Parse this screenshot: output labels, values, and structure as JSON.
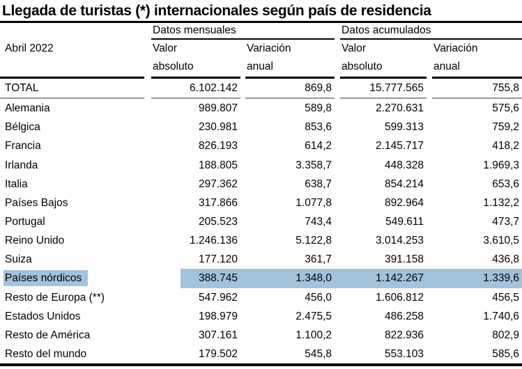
{
  "title": "Llegada de turistas (*) internacionales según país de residencia",
  "table": {
    "period_label": "Abril 2022",
    "group_headers": {
      "monthly": "Datos mensuales",
      "cumulative": "Datos acumulados"
    },
    "sub_headers": {
      "monthly_value": "Valor\nabsoluto",
      "monthly_variation": "Variación\nanual",
      "cumulative_value": "Valor\nabsoluto",
      "cumulative_variation": "Variación\nanual"
    },
    "highlight_color": "#a2c3de",
    "total_row": {
      "country": "TOTAL",
      "monthly_value": "6.102.142",
      "monthly_variation": "869,8",
      "cumulative_value": "15.777.565",
      "cumulative_variation": "755,8"
    },
    "rows": [
      {
        "country": "Alemania",
        "monthly_value": "989.807",
        "monthly_variation": "589,8",
        "cumulative_value": "2.270.631",
        "cumulative_variation": "575,6"
      },
      {
        "country": "Bélgica",
        "monthly_value": "230.981",
        "monthly_variation": "853,6",
        "cumulative_value": "599.313",
        "cumulative_variation": "759,2"
      },
      {
        "country": "Francia",
        "monthly_value": "826.193",
        "monthly_variation": "614,2",
        "cumulative_value": "2.145.717",
        "cumulative_variation": "418,2"
      },
      {
        "country": "Irlanda",
        "monthly_value": "188.805",
        "monthly_variation": "3.358,7",
        "cumulative_value": "448.328",
        "cumulative_variation": "1.969,3"
      },
      {
        "country": "Italia",
        "monthly_value": "297.362",
        "monthly_variation": "638,7",
        "cumulative_value": "854.214",
        "cumulative_variation": "653,6"
      },
      {
        "country": "Países Bajos",
        "monthly_value": "317.866",
        "monthly_variation": "1.077,8",
        "cumulative_value": "892.964",
        "cumulative_variation": "1.132,2"
      },
      {
        "country": "Portugal",
        "monthly_value": "205.523",
        "monthly_variation": "743,4",
        "cumulative_value": "549.611",
        "cumulative_variation": "473,7"
      },
      {
        "country": "Reino Unido",
        "monthly_value": "1.246.136",
        "monthly_variation": "5.122,8",
        "cumulative_value": "3.014.253",
        "cumulative_variation": "3.610,5"
      },
      {
        "country": "Suiza",
        "monthly_value": "177.120",
        "monthly_variation": "361,7",
        "cumulative_value": "391.158",
        "cumulative_variation": "436,8"
      },
      {
        "country": "Países nórdicos",
        "monthly_value": "388.745",
        "monthly_variation": "1.348,0",
        "cumulative_value": "1.142.267",
        "cumulative_variation": "1.339,6",
        "highlighted": true
      },
      {
        "country": "Resto de Europa (**)",
        "monthly_value": "547.962",
        "monthly_variation": "456,0",
        "cumulative_value": "1.606.812",
        "cumulative_variation": "456,5"
      },
      {
        "country": "Estados Unidos",
        "monthly_value": "198.979",
        "monthly_variation": "2.475,5",
        "cumulative_value": "486.258",
        "cumulative_variation": "1.740,6"
      },
      {
        "country": "Resto de América",
        "monthly_value": "307.161",
        "monthly_variation": "1.100,2",
        "cumulative_value": "822.936",
        "cumulative_variation": "802,9"
      },
      {
        "country": "Resto del mundo",
        "monthly_value": "179.502",
        "monthly_variation": "545,8",
        "cumulative_value": "553.103",
        "cumulative_variation": "585,6"
      }
    ]
  }
}
